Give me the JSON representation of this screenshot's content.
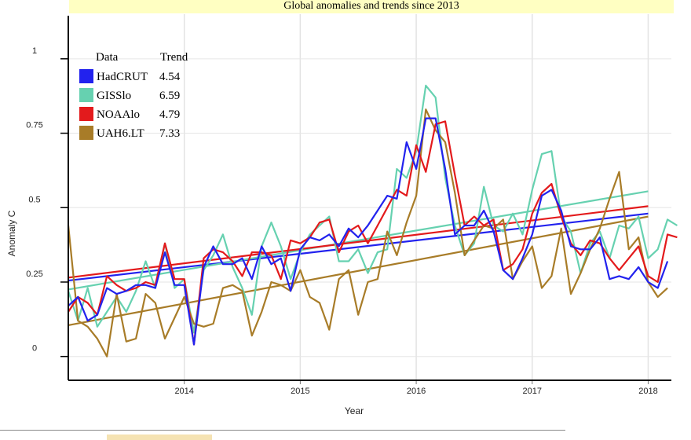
{
  "chart_data": {
    "type": "line",
    "title": "Global anomalies and trends since 2013",
    "xlabel": "Year",
    "ylabel": "Anomaly C",
    "xlim": [
      2013.0,
      2018.2
    ],
    "ylim": [
      -0.08,
      1.15
    ],
    "x_ticks": [
      2014,
      2015,
      2016,
      2017,
      2018
    ],
    "y_ticks": [
      0,
      0.25,
      0.5,
      0.75,
      1
    ],
    "y_tick_labels": [
      "0",
      "0.25",
      "0.5",
      "0.75",
      "1"
    ],
    "grid": true,
    "legend": {
      "placement": "top-left",
      "header_label": "Data",
      "header_value": "Trend",
      "entries": [
        {
          "name": "HadCRUT",
          "value": "4.54",
          "color": "#2222ee"
        },
        {
          "name": "GISSlo",
          "value": "6.59",
          "color": "#66d1b0"
        },
        {
          "name": "NOAAlo",
          "value": "4.79",
          "color": "#e31a1c"
        },
        {
          "name": "UAH6.LT",
          "value": "7.33",
          "color": "#a87c28"
        }
      ]
    },
    "series": [
      {
        "name": "HadCRUT",
        "color": "#2222ee",
        "x": [
          2013.0,
          2013.083,
          2013.167,
          2013.25,
          2013.333,
          2013.417,
          2013.5,
          2013.583,
          2013.667,
          2013.75,
          2013.833,
          2013.917,
          2014.0,
          2014.083,
          2014.167,
          2014.25,
          2014.333,
          2014.417,
          2014.5,
          2014.583,
          2014.667,
          2014.75,
          2014.833,
          2014.917,
          2015.0,
          2015.083,
          2015.167,
          2015.25,
          2015.333,
          2015.417,
          2015.5,
          2015.583,
          2015.667,
          2015.75,
          2015.833,
          2015.917,
          2016.0,
          2016.083,
          2016.167,
          2016.25,
          2016.333,
          2016.417,
          2016.5,
          2016.583,
          2016.667,
          2016.75,
          2016.833,
          2016.917,
          2017.0,
          2017.083,
          2017.167,
          2017.25,
          2017.333,
          2017.417,
          2017.5,
          2017.583,
          2017.667,
          2017.75,
          2017.833,
          2017.917,
          2018.0,
          2018.083,
          2018.167
        ],
        "values": [
          0.17,
          0.2,
          0.12,
          0.14,
          0.23,
          0.21,
          0.22,
          0.24,
          0.24,
          0.23,
          0.35,
          0.24,
          0.24,
          0.04,
          0.3,
          0.37,
          0.31,
          0.31,
          0.33,
          0.26,
          0.37,
          0.31,
          0.33,
          0.22,
          0.36,
          0.4,
          0.39,
          0.41,
          0.37,
          0.43,
          0.4,
          0.44,
          0.49,
          0.54,
          0.53,
          0.72,
          0.63,
          0.8,
          0.8,
          0.63,
          0.41,
          0.44,
          0.44,
          0.49,
          0.42,
          0.29,
          0.26,
          0.33,
          0.41,
          0.54,
          0.56,
          0.49,
          0.37,
          0.36,
          0.36,
          0.4,
          0.26,
          0.27,
          0.26,
          0.3,
          0.25,
          0.23,
          0.32
        ]
      },
      {
        "name": "GISSlo",
        "color": "#66d1b0",
        "x": [
          2013.0,
          2013.083,
          2013.167,
          2013.25,
          2013.333,
          2013.417,
          2013.5,
          2013.583,
          2013.667,
          2013.75,
          2013.833,
          2013.917,
          2014.0,
          2014.083,
          2014.167,
          2014.25,
          2014.333,
          2014.417,
          2014.5,
          2014.583,
          2014.667,
          2014.75,
          2014.833,
          2014.917,
          2015.0,
          2015.083,
          2015.167,
          2015.25,
          2015.333,
          2015.417,
          2015.5,
          2015.583,
          2015.667,
          2015.75,
          2015.833,
          2015.917,
          2016.0,
          2016.083,
          2016.167,
          2016.25,
          2016.333,
          2016.417,
          2016.5,
          2016.583,
          2016.667,
          2016.75,
          2016.833,
          2016.917,
          2017.0,
          2017.083,
          2017.167,
          2017.25,
          2017.333,
          2017.417,
          2017.5,
          2017.583,
          2017.667,
          2017.75,
          2017.833,
          2017.917,
          2018.0,
          2018.083,
          2018.167,
          2018.25
        ],
        "values": [
          0.22,
          0.12,
          0.23,
          0.1,
          0.15,
          0.2,
          0.15,
          0.22,
          0.32,
          0.23,
          0.38,
          0.23,
          0.26,
          0.08,
          0.29,
          0.34,
          0.41,
          0.3,
          0.23,
          0.14,
          0.37,
          0.45,
          0.37,
          0.26,
          0.35,
          0.41,
          0.44,
          0.47,
          0.32,
          0.32,
          0.36,
          0.28,
          0.35,
          0.36,
          0.63,
          0.6,
          0.69,
          0.91,
          0.87,
          0.6,
          0.44,
          0.34,
          0.38,
          0.57,
          0.44,
          0.42,
          0.48,
          0.41,
          0.56,
          0.68,
          0.69,
          0.47,
          0.42,
          0.28,
          0.38,
          0.42,
          0.33,
          0.44,
          0.43,
          0.47,
          0.33,
          0.36,
          0.46,
          0.44
        ]
      },
      {
        "name": "NOAAlo",
        "color": "#e31a1c",
        "x": [
          2013.0,
          2013.083,
          2013.167,
          2013.25,
          2013.333,
          2013.417,
          2013.5,
          2013.583,
          2013.667,
          2013.75,
          2013.833,
          2013.917,
          2014.0,
          2014.083,
          2014.167,
          2014.25,
          2014.333,
          2014.417,
          2014.5,
          2014.583,
          2014.667,
          2014.75,
          2014.833,
          2014.917,
          2015.0,
          2015.083,
          2015.167,
          2015.25,
          2015.333,
          2015.417,
          2015.5,
          2015.583,
          2015.667,
          2015.75,
          2015.833,
          2015.917,
          2016.0,
          2016.083,
          2016.167,
          2016.25,
          2016.333,
          2016.417,
          2016.5,
          2016.583,
          2016.667,
          2016.75,
          2016.833,
          2016.917,
          2017.0,
          2017.083,
          2017.167,
          2017.25,
          2017.333,
          2017.417,
          2017.5,
          2017.583,
          2017.667,
          2017.75,
          2017.833,
          2017.917,
          2018.0,
          2018.083,
          2018.167,
          2018.25
        ],
        "values": [
          0.15,
          0.2,
          0.18,
          0.14,
          0.27,
          0.24,
          0.22,
          0.23,
          0.25,
          0.24,
          0.38,
          0.26,
          0.26,
          0.04,
          0.33,
          0.36,
          0.35,
          0.32,
          0.27,
          0.35,
          0.35,
          0.34,
          0.26,
          0.39,
          0.38,
          0.4,
          0.45,
          0.46,
          0.35,
          0.42,
          0.44,
          0.38,
          0.44,
          0.5,
          0.56,
          0.54,
          0.71,
          0.62,
          0.78,
          0.79,
          0.61,
          0.44,
          0.47,
          0.44,
          0.46,
          0.29,
          0.31,
          0.36,
          0.48,
          0.55,
          0.58,
          0.47,
          0.38,
          0.34,
          0.39,
          0.38,
          0.33,
          0.29,
          0.33,
          0.37,
          0.27,
          0.25,
          0.41,
          0.4
        ]
      },
      {
        "name": "UAH6.LT",
        "color": "#a87c28",
        "x": [
          2013.0,
          2013.083,
          2013.167,
          2013.25,
          2013.333,
          2013.417,
          2013.5,
          2013.583,
          2013.667,
          2013.75,
          2013.833,
          2013.917,
          2014.0,
          2014.083,
          2014.167,
          2014.25,
          2014.333,
          2014.417,
          2014.5,
          2014.583,
          2014.667,
          2014.75,
          2014.833,
          2014.917,
          2015.0,
          2015.083,
          2015.167,
          2015.25,
          2015.333,
          2015.417,
          2015.5,
          2015.583,
          2015.667,
          2015.75,
          2015.833,
          2015.917,
          2016.0,
          2016.083,
          2016.167,
          2016.25,
          2016.333,
          2016.417,
          2016.5,
          2016.583,
          2016.667,
          2016.75,
          2016.833,
          2016.917,
          2017.0,
          2017.083,
          2017.167,
          2017.25,
          2017.333,
          2017.417,
          2017.5,
          2017.583,
          2017.667,
          2017.75,
          2017.833,
          2017.917,
          2018.0,
          2018.083,
          2018.167
        ],
        "values": [
          0.44,
          0.12,
          0.1,
          0.06,
          0.0,
          0.21,
          0.05,
          0.06,
          0.21,
          0.18,
          0.06,
          0.13,
          0.2,
          0.11,
          0.1,
          0.11,
          0.23,
          0.24,
          0.22,
          0.07,
          0.15,
          0.25,
          0.24,
          0.22,
          0.29,
          0.2,
          0.18,
          0.09,
          0.26,
          0.29,
          0.14,
          0.25,
          0.26,
          0.42,
          0.34,
          0.45,
          0.54,
          0.83,
          0.76,
          0.72,
          0.55,
          0.34,
          0.39,
          0.44,
          0.43,
          0.46,
          0.26,
          0.32,
          0.37,
          0.23,
          0.27,
          0.43,
          0.21,
          0.28,
          0.36,
          0.43,
          0.53,
          0.62,
          0.36,
          0.4,
          0.25,
          0.2,
          0.23
        ]
      }
    ],
    "trends": [
      {
        "name": "HadCRUT",
        "color": "#2222ee",
        "x": [
          2013.0,
          2018.0
        ],
        "values": [
          0.255,
          0.48
        ]
      },
      {
        "name": "GISSlo",
        "color": "#66d1b0",
        "x": [
          2013.0,
          2018.0
        ],
        "values": [
          0.225,
          0.555
        ]
      },
      {
        "name": "NOAAlo",
        "color": "#e31a1c",
        "x": [
          2013.0,
          2018.0
        ],
        "values": [
          0.265,
          0.505
        ]
      },
      {
        "name": "UAH6.LT",
        "color": "#a87c28",
        "x": [
          2013.0,
          2018.0
        ],
        "values": [
          0.105,
          0.47
        ]
      }
    ]
  }
}
